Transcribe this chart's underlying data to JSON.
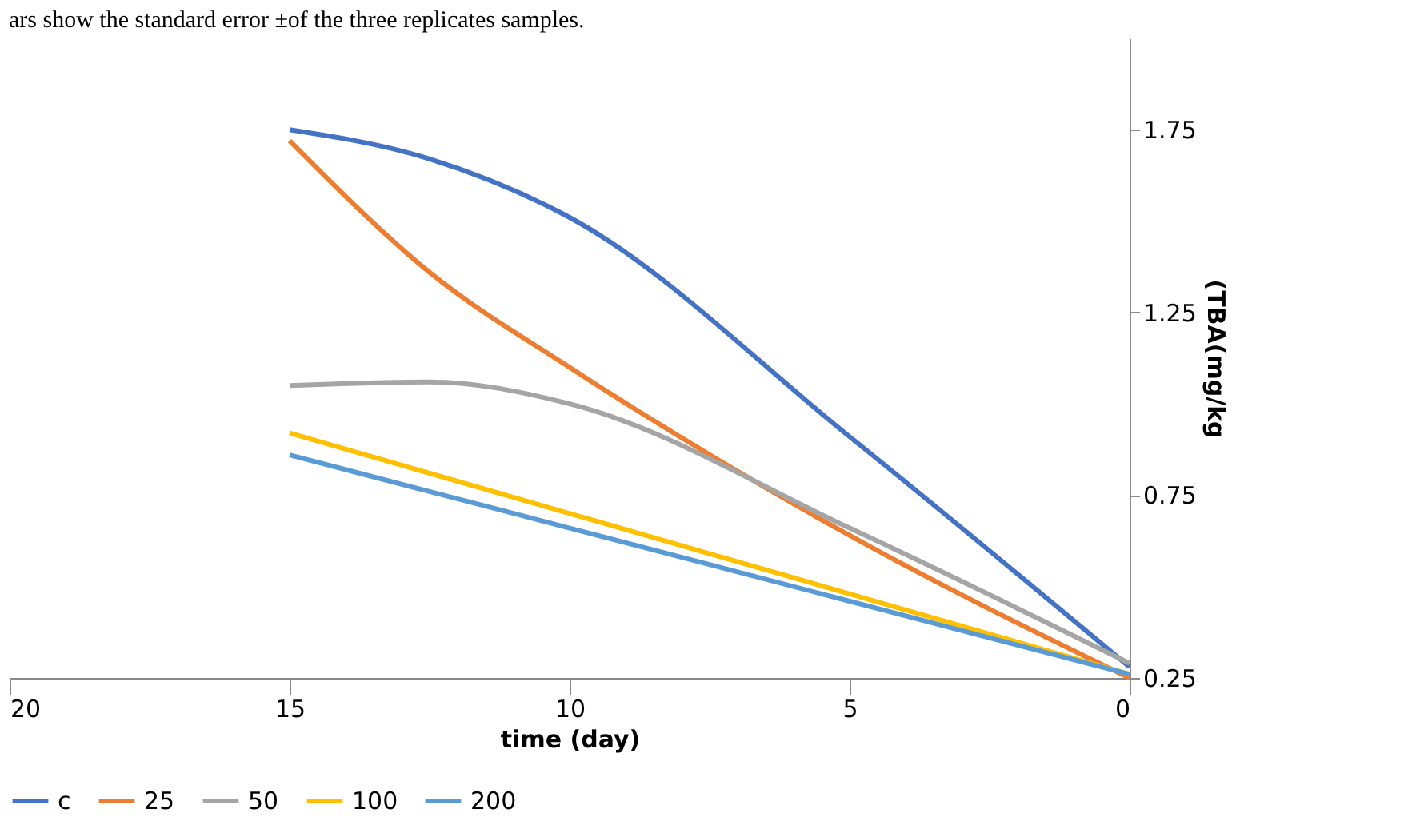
{
  "chart_data": {
    "type": "line",
    "xlabel": "time (day)",
    "ylabel": "(TBA(mg/kg",
    "annotations": [
      "ars show the standard error ±of the three replicates samples."
    ],
    "x": [
      15,
      12.5,
      10,
      5,
      0
    ],
    "series": [
      {
        "name": "c",
        "color": "#4472c4",
        "values": [
          1.75,
          1.67,
          1.51,
          0.91,
          0.28
        ]
      },
      {
        "name": "25",
        "color": "#ed7d31",
        "values": [
          1.72,
          1.36,
          1.1,
          0.64,
          0.25
        ]
      },
      {
        "name": "50",
        "color": "#a5a5a5",
        "values": [
          1.05,
          1.06,
          1.0,
          0.66,
          0.29
        ]
      },
      {
        "name": "100",
        "color": "#ffc000",
        "values": [
          0.92,
          0.81,
          0.7,
          0.48,
          0.26
        ]
      },
      {
        "name": "200",
        "color": "#5b9bd5",
        "values": [
          0.86,
          0.76,
          0.66,
          0.46,
          0.26
        ]
      }
    ],
    "xlim": [
      20,
      0
    ],
    "xticks": [
      20,
      15,
      10,
      5,
      0
    ],
    "ylim": [
      0.25,
      2.0
    ],
    "yticks": [
      0.25,
      0.75,
      1.25,
      1.75
    ],
    "grid": false,
    "legend": "bottom",
    "marker": "none",
    "line_style": "solid"
  }
}
